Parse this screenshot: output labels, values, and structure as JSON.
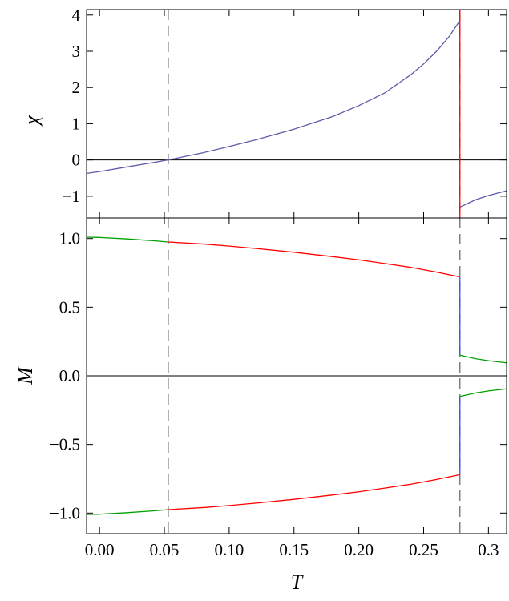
{
  "chart_data": [
    {
      "type": "line",
      "ylabel": "χ",
      "xlabel": "",
      "xlim": [
        -0.01,
        0.314
      ],
      "ylim": [
        -1.6,
        4.15
      ],
      "x_ticks": [
        0.0,
        0.05,
        0.1,
        0.15,
        0.2,
        0.25,
        0.3
      ],
      "y_ticks": [
        -1,
        0,
        1,
        2,
        3,
        4
      ],
      "y_tick_labels": [
        "−1",
        "0",
        "1",
        "2",
        "3",
        "4"
      ],
      "zero_line": true,
      "colors": {
        "susceptibility": "#5b5ba8",
        "transition": "#ff0000",
        "reference": "#777777"
      },
      "series": [
        {
          "color": "#5b5ba8",
          "x": [
            -0.01,
            0.0,
            0.02,
            0.04,
            0.053,
            0.08,
            0.1,
            0.12,
            0.15,
            0.18,
            0.2,
            0.22,
            0.24,
            0.25,
            0.26,
            0.27,
            0.278
          ],
          "y": [
            -0.37,
            -0.32,
            -0.2,
            -0.08,
            0.0,
            0.2,
            0.37,
            0.55,
            0.85,
            1.2,
            1.5,
            1.85,
            2.35,
            2.65,
            3.0,
            3.42,
            3.85
          ]
        },
        {
          "color": "#5b5ba8",
          "x": [
            0.278,
            0.29,
            0.3,
            0.314
          ],
          "y": [
            -1.3,
            -1.1,
            -0.98,
            -0.85
          ]
        },
        {
          "color": "#ff0000",
          "x": [
            0.278,
            0.278
          ],
          "y": [
            -1.6,
            4.15
          ]
        }
      ],
      "dashed_markers_x": [
        0.053,
        0.278
      ]
    },
    {
      "type": "line",
      "ylabel": "M",
      "xlabel": "T",
      "xlim": [
        -0.01,
        0.314
      ],
      "ylim": [
        -1.15,
        1.15
      ],
      "x_ticks": [
        0.0,
        0.05,
        0.1,
        0.15,
        0.2,
        0.25,
        0.3
      ],
      "x_tick_labels": [
        "0.00",
        "0.05",
        "0.10",
        "0.15",
        "0.20",
        "0.25",
        "0.3"
      ],
      "y_ticks": [
        -1.0,
        -0.5,
        0.0,
        0.5,
        1.0
      ],
      "y_tick_labels": [
        "−1.0",
        "−0.5",
        "0.0",
        "0.5",
        "1.0"
      ],
      "zero_line": true,
      "colors": {
        "stable": "#00a000",
        "metastable": "#ff0000",
        "jump": "#4444ff",
        "reference": "#777777"
      },
      "series": [
        {
          "color": "#00a000",
          "x": [
            -0.01,
            0.0,
            0.02,
            0.04,
            0.053
          ],
          "y": [
            1.01,
            1.008,
            0.998,
            0.985,
            0.975
          ]
        },
        {
          "color": "#ff0000",
          "x": [
            0.053,
            0.08,
            0.1,
            0.12,
            0.15,
            0.18,
            0.2,
            0.22,
            0.24,
            0.26,
            0.278
          ],
          "y": [
            0.975,
            0.96,
            0.945,
            0.928,
            0.9,
            0.868,
            0.845,
            0.818,
            0.79,
            0.755,
            0.72
          ]
        },
        {
          "color": "#4444ff",
          "x": [
            0.278,
            0.278
          ],
          "y": [
            0.72,
            0.15
          ]
        },
        {
          "color": "#00a000",
          "x": [
            0.278,
            0.29,
            0.3,
            0.314
          ],
          "y": [
            0.15,
            0.125,
            0.11,
            0.095
          ]
        },
        {
          "color": "#00a000",
          "x": [
            -0.01,
            0.0,
            0.02,
            0.04,
            0.053
          ],
          "y": [
            -1.01,
            -1.008,
            -0.998,
            -0.985,
            -0.975
          ]
        },
        {
          "color": "#ff0000",
          "x": [
            0.053,
            0.08,
            0.1,
            0.12,
            0.15,
            0.18,
            0.2,
            0.22,
            0.24,
            0.26,
            0.278
          ],
          "y": [
            -0.975,
            -0.96,
            -0.945,
            -0.928,
            -0.9,
            -0.868,
            -0.845,
            -0.818,
            -0.79,
            -0.755,
            -0.72
          ]
        },
        {
          "color": "#4444ff",
          "x": [
            0.278,
            0.278
          ],
          "y": [
            -0.72,
            -0.15
          ]
        },
        {
          "color": "#00a000",
          "x": [
            0.278,
            0.29,
            0.3,
            0.314
          ],
          "y": [
            -0.15,
            -0.125,
            -0.11,
            -0.095
          ]
        }
      ],
      "dashed_markers_x": [
        0.053,
        0.278
      ]
    }
  ]
}
